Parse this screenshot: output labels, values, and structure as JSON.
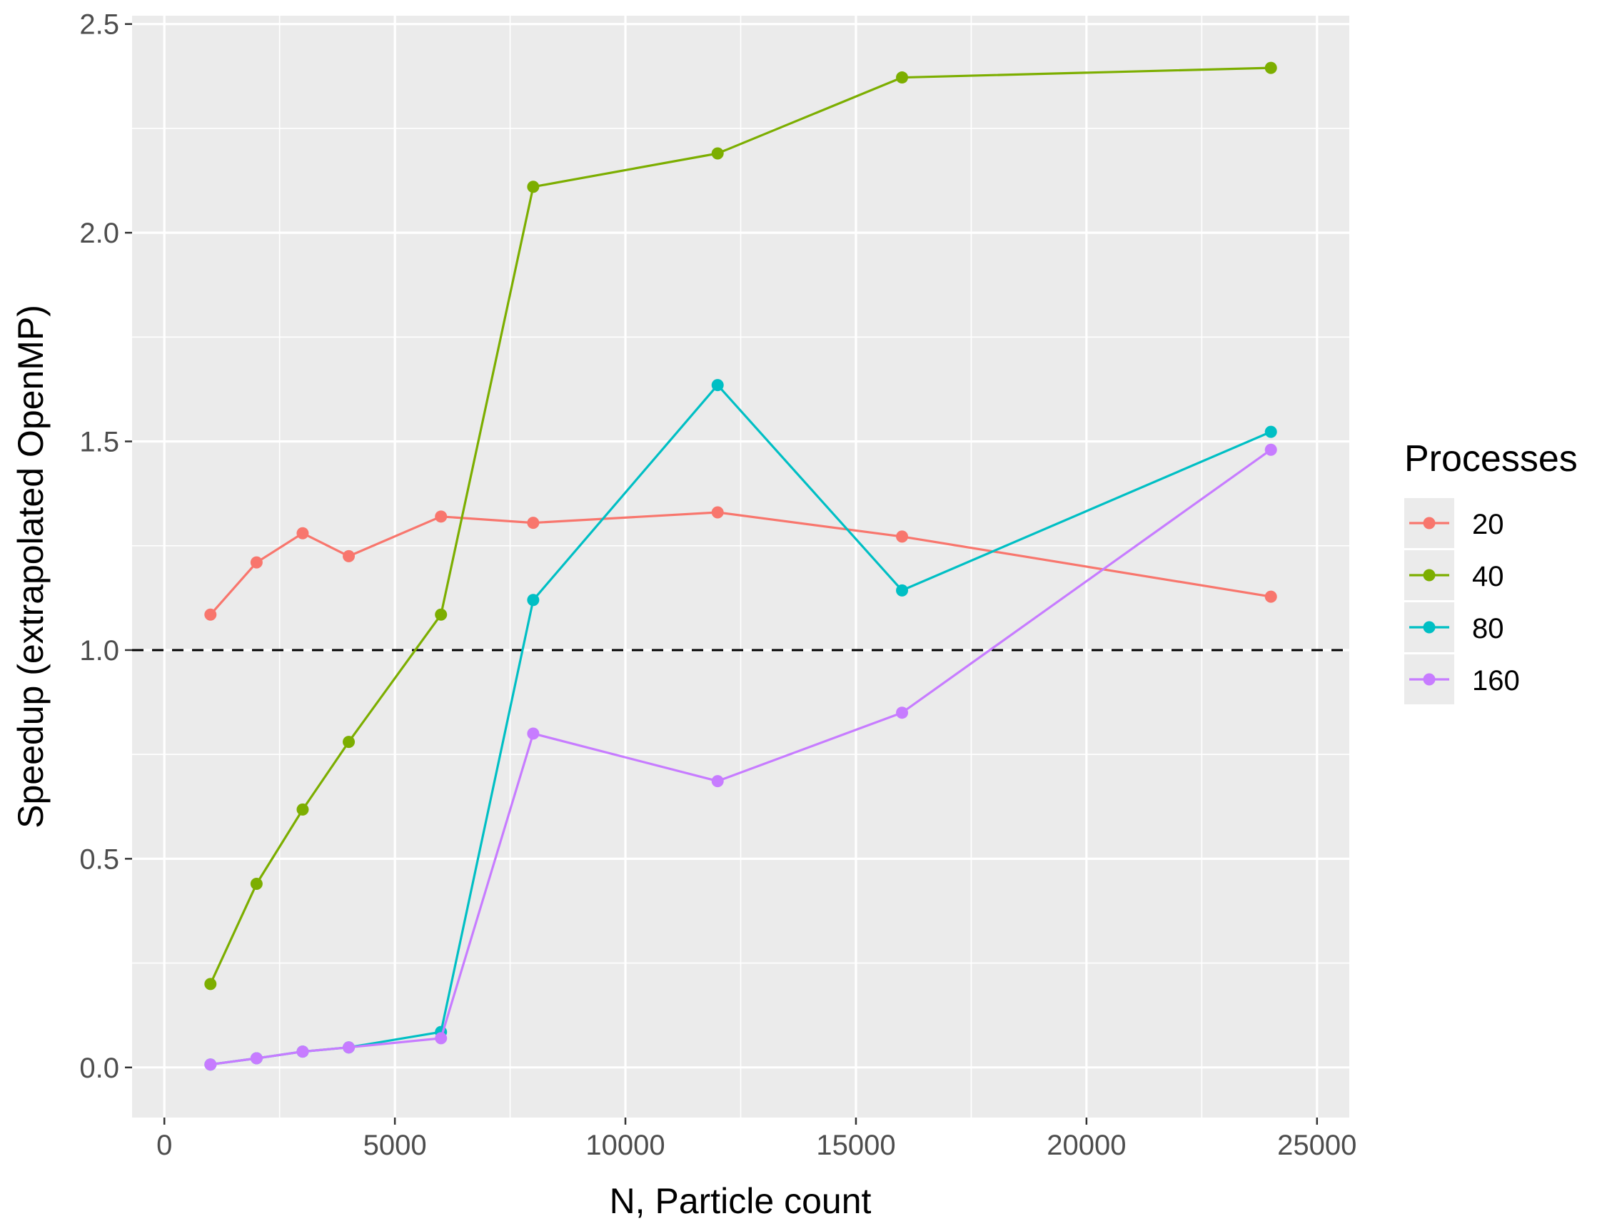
{
  "chart_data": {
    "type": "line",
    "xlabel": "N, Particle count",
    "ylabel": "Speedup (extrapolated OpenMP)",
    "xlim": [
      -700,
      25700
    ],
    "ylim": [
      -0.12,
      2.52
    ],
    "x_ticks": [
      0,
      5000,
      10000,
      15000,
      20000,
      25000
    ],
    "x_tick_labels": [
      "0",
      "5000",
      "10000",
      "15000",
      "20000",
      "25000"
    ],
    "y_ticks": [
      0.0,
      0.5,
      1.0,
      1.5,
      2.0,
      2.5
    ],
    "y_tick_labels": [
      "0.0",
      "0.5",
      "1.0",
      "1.5",
      "2.0",
      "2.5"
    ],
    "reference_line": {
      "y": 1.0,
      "style": "dashed",
      "color": "#000000"
    },
    "grid": true,
    "panel_background": "#EBEBEB",
    "legend": {
      "title": "Processes",
      "position": "right"
    },
    "series": [
      {
        "name": "20",
        "color": "#F8766D",
        "x": [
          1000,
          2000,
          3000,
          4000,
          6000,
          8000,
          12000,
          16000,
          24000
        ],
        "y": [
          1.085,
          1.21,
          1.28,
          1.225,
          1.32,
          1.305,
          1.33,
          1.272,
          1.128
        ]
      },
      {
        "name": "40",
        "color": "#7CAE00",
        "x": [
          1000,
          2000,
          3000,
          4000,
          6000,
          8000,
          12000,
          16000,
          24000
        ],
        "y": [
          0.2,
          0.44,
          0.618,
          0.78,
          1.085,
          2.11,
          2.19,
          2.372,
          2.395
        ]
      },
      {
        "name": "80",
        "color": "#00BFC4",
        "x": [
          1000,
          2000,
          3000,
          4000,
          6000,
          8000,
          12000,
          16000,
          24000
        ],
        "y": [
          0.007,
          0.022,
          0.038,
          0.048,
          0.085,
          1.12,
          1.635,
          1.143,
          1.523
        ]
      },
      {
        "name": "160",
        "color": "#C77CFF",
        "x": [
          1000,
          2000,
          3000,
          4000,
          6000,
          8000,
          12000,
          16000,
          24000
        ],
        "y": [
          0.007,
          0.022,
          0.038,
          0.048,
          0.07,
          0.8,
          0.686,
          0.85,
          1.48
        ]
      }
    ]
  }
}
